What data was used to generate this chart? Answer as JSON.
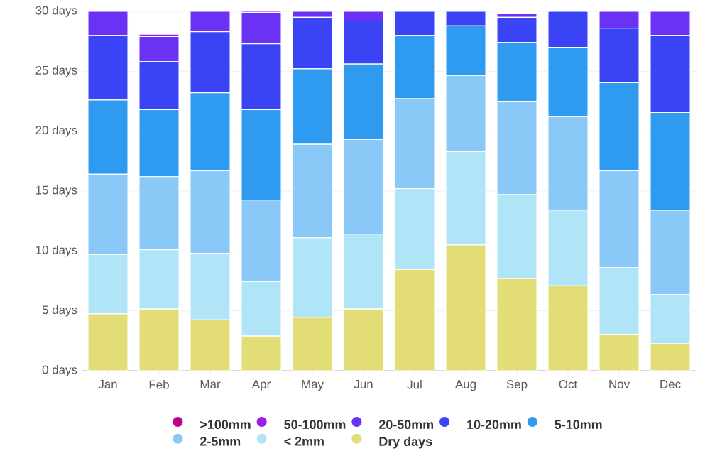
{
  "chart_data": {
    "type": "bar",
    "stacked": true,
    "grid": "y",
    "legend": "bottom",
    "marker": "circle",
    "categories": [
      "Jan",
      "Feb",
      "Mar",
      "Apr",
      "May",
      "Jun",
      "Jul",
      "Aug",
      "Sep",
      "Oct",
      "Nov",
      "Dec"
    ],
    "ylim": [
      0,
      30
    ],
    "yticks": [
      {
        "value": 0,
        "label": "0 days"
      },
      {
        "value": 5,
        "label": "5 days"
      },
      {
        "value": 10,
        "label": "10 days"
      },
      {
        "value": 15,
        "label": "15 days"
      },
      {
        "value": 20,
        "label": "20 days"
      },
      {
        "value": 25,
        "label": "25 days"
      },
      {
        "value": 30,
        "label": "30 days"
      }
    ],
    "series": [
      {
        "name": "Dry days",
        "color": "#e3dd78",
        "values": [
          4.75,
          5.15,
          4.25,
          2.9,
          4.45,
          5.15,
          8.45,
          10.5,
          7.7,
          7.1,
          3.05,
          2.25
        ]
      },
      {
        "name": "< 2mm",
        "color": "#b0e4f7",
        "values": [
          4.95,
          4.95,
          5.55,
          4.55,
          6.65,
          6.25,
          6.75,
          7.8,
          7.0,
          6.3,
          5.55,
          4.1
        ]
      },
      {
        "name": "2-5mm",
        "color": "#8ac8f8",
        "values": [
          6.7,
          6.1,
          6.9,
          6.8,
          7.8,
          7.9,
          7.5,
          6.35,
          7.8,
          7.8,
          8.1,
          7.05
        ]
      },
      {
        "name": "5-10mm",
        "color": "#2f9bf0",
        "values": [
          6.2,
          5.6,
          6.5,
          7.55,
          6.3,
          6.3,
          5.3,
          4.15,
          4.9,
          5.8,
          7.35,
          8.15
        ]
      },
      {
        "name": "10-20mm",
        "color": "#3a44f5",
        "values": [
          5.4,
          4.0,
          5.1,
          5.5,
          4.3,
          3.6,
          2.0,
          1.2,
          2.1,
          3.0,
          4.55,
          6.45
        ]
      },
      {
        "name": "20-50mm",
        "color": "#6a32f5",
        "values": [
          2.0,
          2.1,
          1.7,
          2.6,
          0.5,
          0.8,
          0,
          0,
          0.3,
          0,
          1.4,
          2.0
        ]
      },
      {
        "name": "50-100mm",
        "color": "#9b1ee6",
        "values": [
          0,
          0.2,
          0,
          0.1,
          0,
          0,
          0,
          0,
          0,
          0,
          0,
          0
        ]
      },
      {
        "name": ">100mm",
        "color": "#c0008c",
        "values": [
          0,
          0,
          0,
          0,
          0,
          0,
          0,
          0,
          0,
          0,
          0,
          0
        ]
      }
    ]
  }
}
